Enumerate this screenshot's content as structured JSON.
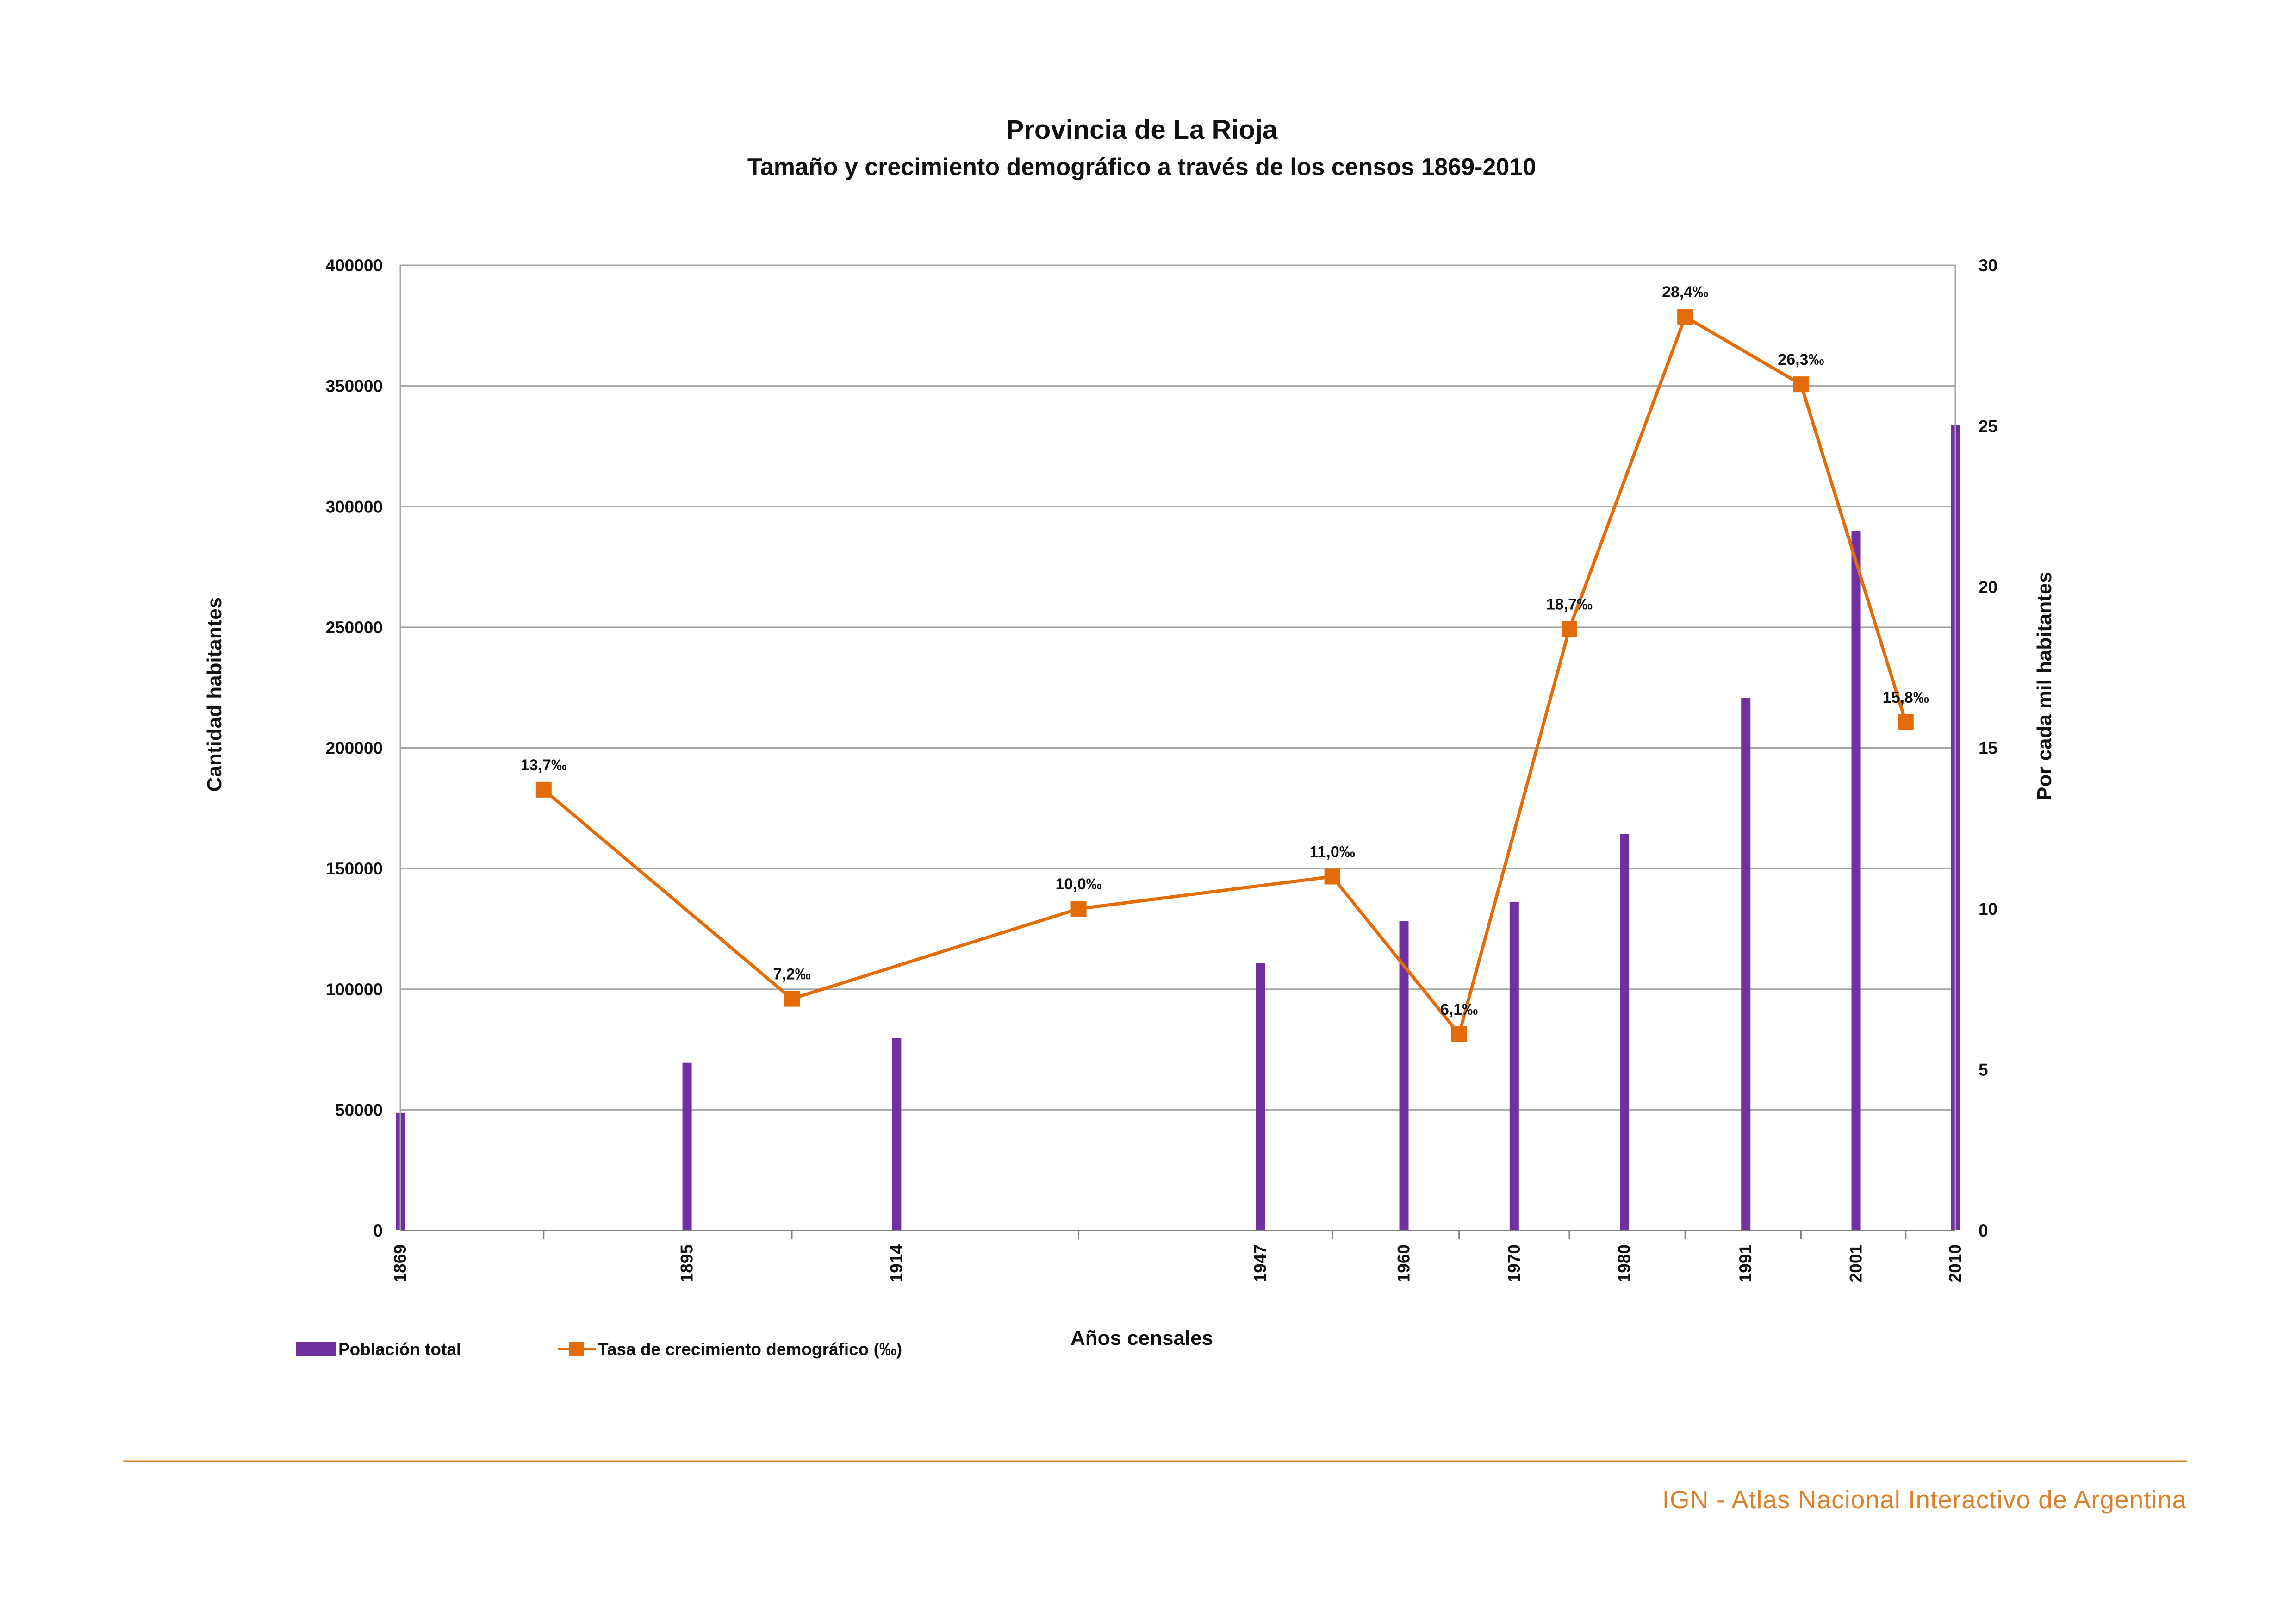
{
  "colors": {
    "bars": "#7030a0",
    "line": "#e36c09",
    "grid": "#a6a6a6",
    "footer": "#d9822b"
  },
  "footer": {
    "text": "IGN - Atlas Nacional Interactivo de Argentina"
  },
  "chart_data": {
    "type": "bar",
    "title": "Provincia de La Rioja",
    "subtitle": "Tamaño y crecimiento demográfico a través de los censos 1869-2010",
    "xlabel": "Años censales",
    "ylabel": "Cantidad habitantes",
    "y2label": "Por cada mil habitantes",
    "ylim": [
      0,
      400000
    ],
    "yticks": [
      0,
      50000,
      100000,
      150000,
      200000,
      250000,
      300000,
      350000,
      400000
    ],
    "y2lim": [
      0,
      30
    ],
    "y2ticks": [
      0,
      5,
      10,
      15,
      20,
      25,
      30
    ],
    "xlim": [
      1869,
      2010
    ],
    "x_tick_labels": [
      "1869",
      "1895",
      "1914",
      "1947",
      "1960",
      "1970",
      "1980",
      "1991",
      "2001",
      "2010"
    ],
    "grid": true,
    "legend_position": "bottom-left",
    "series": [
      {
        "name": "Población total",
        "type": "bar",
        "axis": "left",
        "x": [
          1869,
          1895,
          1914,
          1947,
          1960,
          1970,
          1980,
          1991,
          2001,
          2010
        ],
        "values": [
          48746,
          69502,
          79754,
          110746,
          128220,
          136237,
          164217,
          220729,
          289983,
          333642
        ]
      },
      {
        "name": "Tasa de crecimiento demográfico (‰)",
        "type": "line",
        "axis": "right",
        "x": [
          1882,
          1904.5,
          1930.5,
          1953.5,
          1965,
          1975,
          1985.5,
          1996,
          2005.5
        ],
        "values": [
          13.7,
          7.2,
          10.0,
          11.0,
          6.1,
          18.7,
          28.4,
          26.3,
          15.8
        ],
        "labels": [
          "13,7‰",
          "7,2‰",
          "10,0‰",
          "11,0‰",
          "6,1‰",
          "18,7‰",
          "28,4‰",
          "26,3‰",
          "15,8‰"
        ]
      }
    ]
  }
}
